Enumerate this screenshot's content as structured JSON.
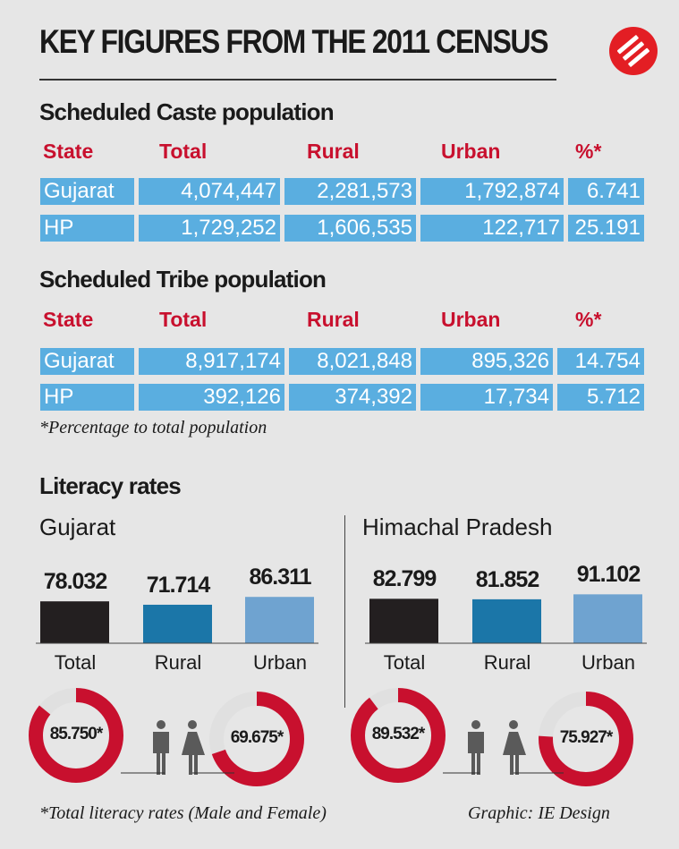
{
  "title": "KEY FIGURES FROM THE 2011 CENSUS",
  "logo": {
    "name": "indian-express-logo",
    "color": "#e31e24"
  },
  "colors": {
    "header_red": "#c8102e",
    "table_blue": "#5aaee0",
    "bar_total": "#231f20",
    "bar_rural": "#1b76a8",
    "bar_urban": "#6fa3d0",
    "donut_red": "#c8102e",
    "donut_rest": "#e0e0e0",
    "icon_gray": "#5a5a5a"
  },
  "sc": {
    "heading": "Scheduled Caste population",
    "columns": [
      "State",
      "Total",
      "Rural",
      "Urban",
      "%*"
    ],
    "rows": [
      [
        "Gujarat",
        "4,074,447",
        "2,281,573",
        "1,792,874",
        "6.741"
      ],
      [
        "HP",
        "1,729,252",
        "1,606,535",
        "122,717",
        "25.191"
      ]
    ]
  },
  "st": {
    "heading": "Scheduled Tribe population",
    "columns": [
      "State",
      "Total",
      "Rural",
      "Urban",
      "%*"
    ],
    "rows": [
      [
        "Gujarat",
        "8,917,174",
        "8,021,848",
        "895,326",
        "14.754"
      ],
      [
        "HP",
        "392,126",
        "374,392",
        "17,734",
        "5.712"
      ]
    ]
  },
  "pct_note": "*Percentage to total population",
  "literacy_heading": "Literacy rates",
  "chart_data": [
    {
      "type": "bar",
      "title": "Gujarat",
      "categories": [
        "Total",
        "Rural",
        "Urban"
      ],
      "values": [
        78.032,
        71.714,
        86.311
      ],
      "labels": [
        "78.032",
        "71.714",
        "86.311"
      ]
    },
    {
      "type": "bar",
      "title": "Himachal Pradesh",
      "categories": [
        "Total",
        "Rural",
        "Urban"
      ],
      "values": [
        82.799,
        81.852,
        91.102
      ],
      "labels": [
        "82.799",
        "81.852",
        "91.102"
      ]
    },
    {
      "type": "pie",
      "state": "Gujarat",
      "categories": [
        "Male",
        "Female"
      ],
      "values": [
        85.75,
        69.675
      ],
      "labels": [
        "85.750*",
        "69.675*"
      ]
    },
    {
      "type": "pie",
      "state": "Himachal Pradesh",
      "categories": [
        "Male",
        "Female"
      ],
      "values": [
        89.532,
        75.927
      ],
      "labels": [
        "89.532*",
        "75.927*"
      ]
    }
  ],
  "literacy_note": "*Total literacy rates (Male and Female)",
  "credit": "Graphic: IE Design"
}
